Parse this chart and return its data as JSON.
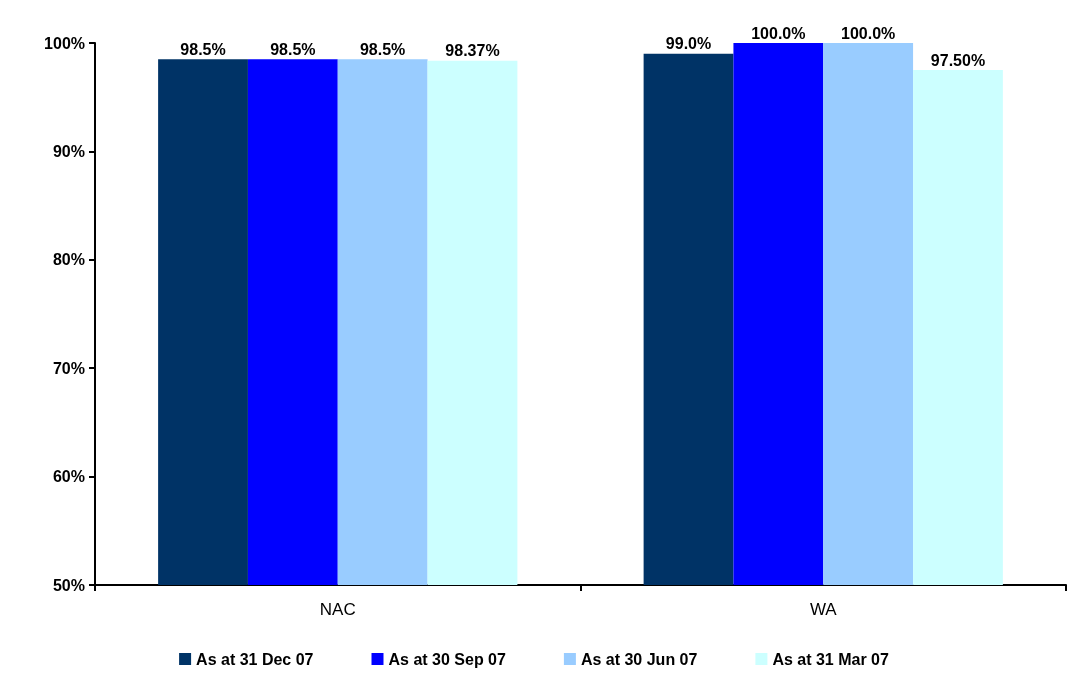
{
  "chart_data": {
    "type": "bar",
    "categories": [
      "NAC",
      "WA"
    ],
    "series": [
      {
        "name": "As at 31 Dec 07",
        "color": "#003366",
        "values": [
          98.5,
          99.0
        ],
        "value_labels": [
          "98.5%",
          "99.0%"
        ]
      },
      {
        "name": "As at 30 Sep 07",
        "color": "#0000ff",
        "values": [
          98.5,
          100.0
        ],
        "value_labels": [
          "98.5%",
          "100.0%"
        ]
      },
      {
        "name": "As at 30 Jun 07",
        "color": "#99ccff",
        "values": [
          98.5,
          100.0
        ],
        "value_labels": [
          "98.5%",
          "100.0%"
        ]
      },
      {
        "name": "As at 31 Mar 07",
        "color": "#ccffff",
        "values": [
          98.37,
          97.5
        ],
        "value_labels": [
          "98.37%",
          "97.50%"
        ]
      }
    ],
    "ylim": [
      50,
      100
    ],
    "yticks": [
      {
        "value": 50,
        "label": "50%"
      },
      {
        "value": 60,
        "label": "60%"
      },
      {
        "value": 70,
        "label": "70%"
      },
      {
        "value": 80,
        "label": "80%"
      },
      {
        "value": 90,
        "label": "90%"
      },
      {
        "value": 100,
        "label": "100%"
      }
    ],
    "grid": false,
    "legend": "bottom"
  }
}
